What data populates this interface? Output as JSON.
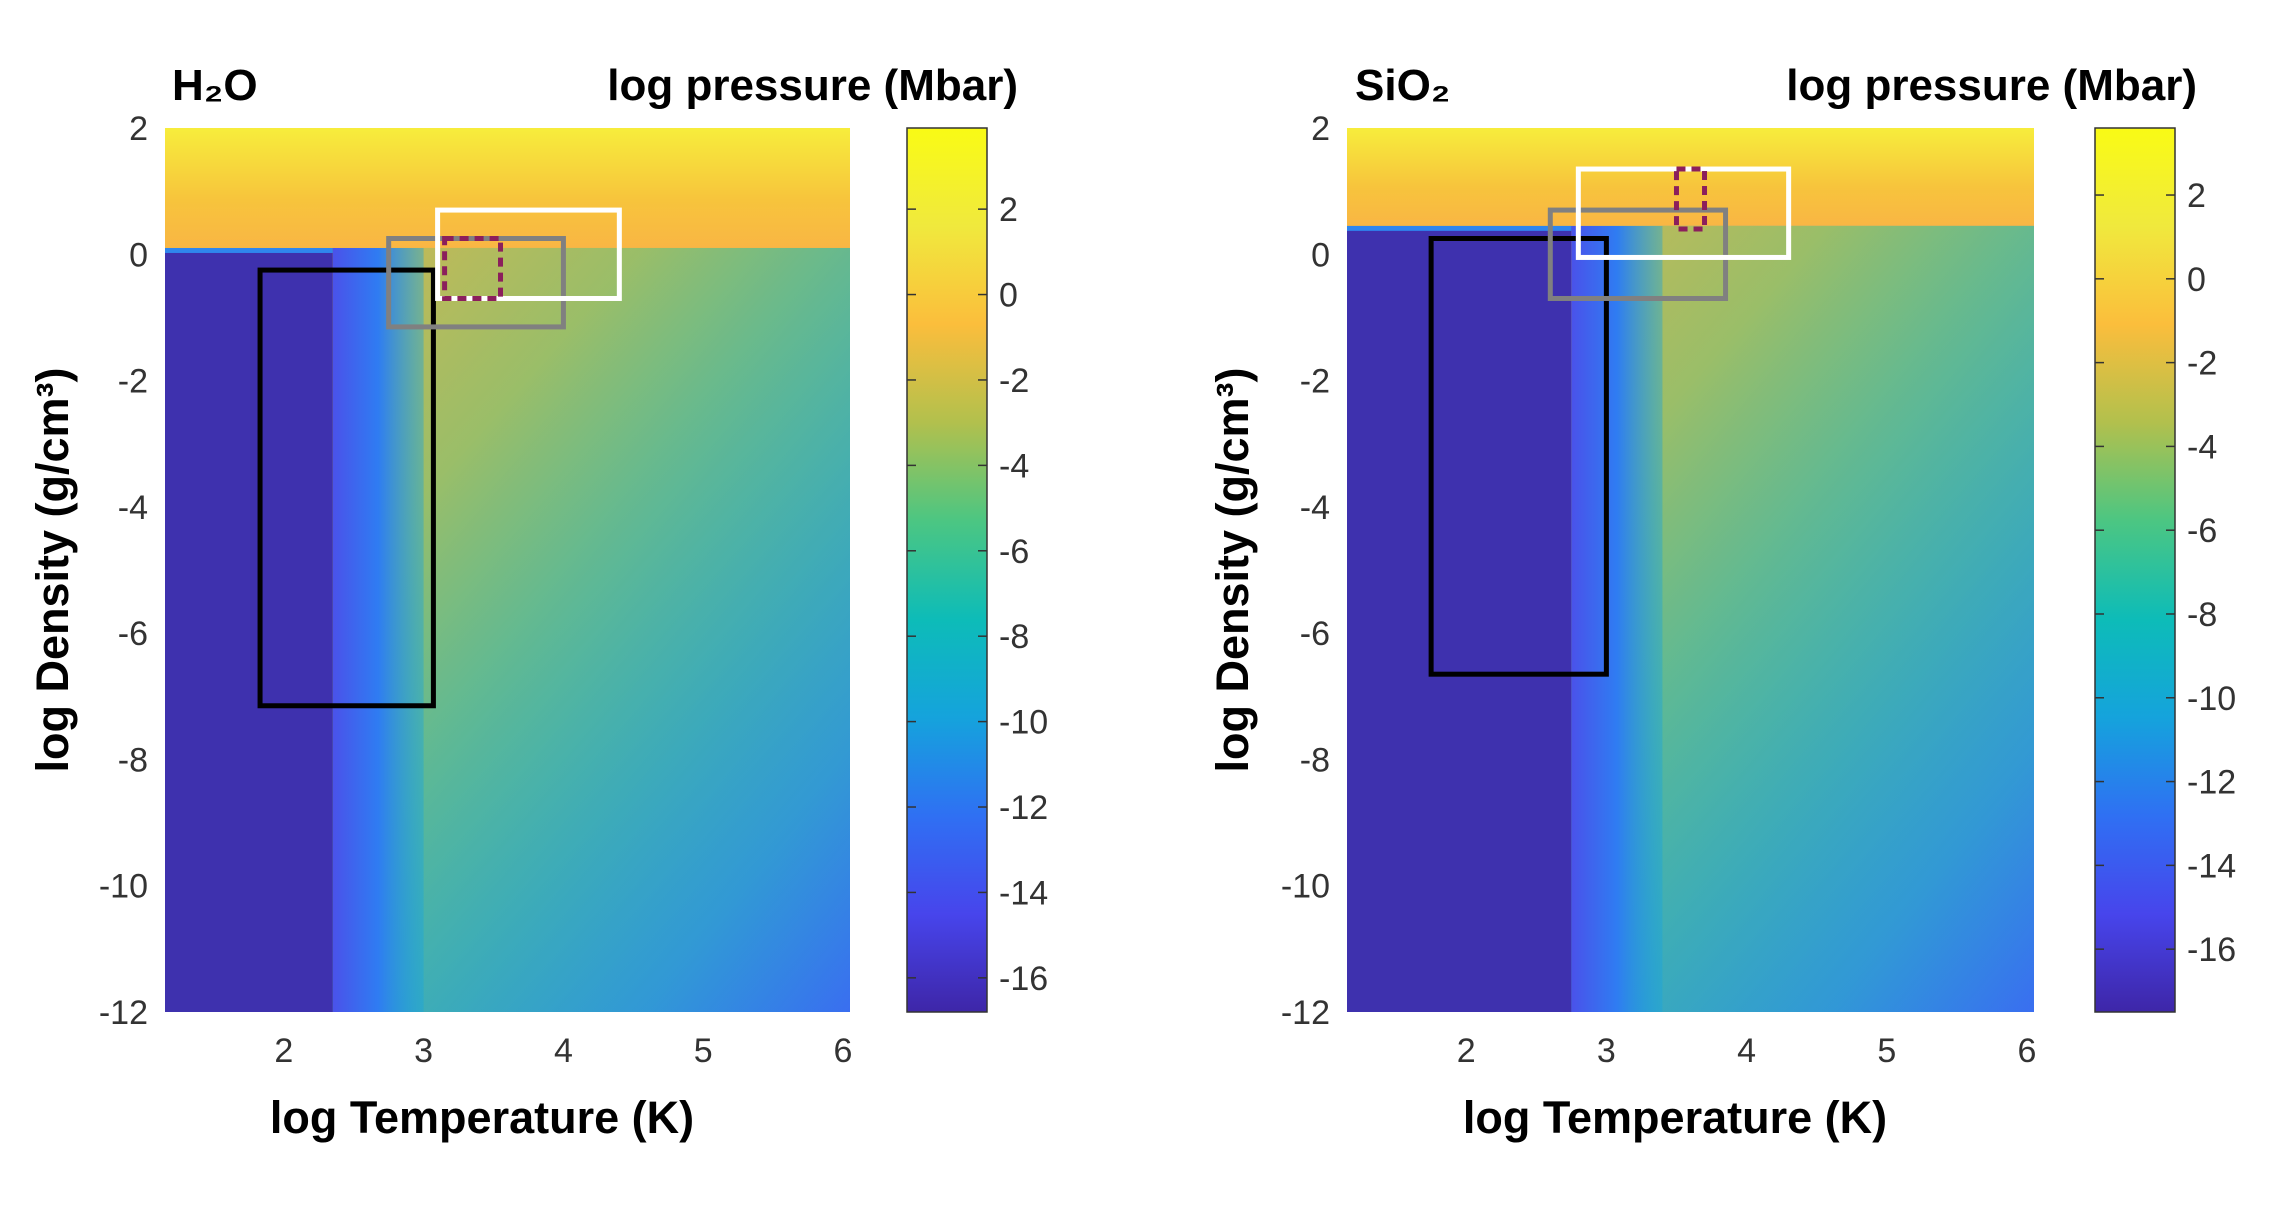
{
  "colors": {
    "viridis_stops": [
      "#3e26a8",
      "#4745ec",
      "#2f70f3",
      "#15a3dc",
      "#0dbcb8",
      "#4cc682",
      "#b2c04d",
      "#fbbe3c",
      "#f0e93d",
      "#f9fb15"
    ]
  },
  "chart_data": [
    {
      "type": "heatmap",
      "name": "h2o",
      "title": "H₂O",
      "colorbar_label": "log pressure (Mbar)",
      "xlabel": "log Temperature (K)",
      "ylabel": "log Density (g/cm³)",
      "xlim": [
        1.15,
        6.05
      ],
      "ylim": [
        -12,
        2
      ],
      "xticks": [
        2,
        3,
        4,
        5,
        6
      ],
      "yticks": [
        -12,
        -10,
        -8,
        -6,
        -4,
        -2,
        0,
        2
      ],
      "clim": [
        -16.8,
        3.9
      ],
      "cticks": [
        -16,
        -14,
        -12,
        -10,
        -8,
        -6,
        -4,
        -2,
        0,
        2
      ],
      "field": {
        "liquid_boundary_logrho": 0.1,
        "vapor_logT_edge": 2.35,
        "transition_logT_edge": 3.0
      },
      "boxes": [
        {
          "name": "black-box",
          "color": "#000000",
          "dashed": false,
          "logT": [
            1.83,
            3.07
          ],
          "logrho": [
            -7.15,
            -0.25
          ]
        },
        {
          "name": "gray-box",
          "color": "#808080",
          "dashed": false,
          "logT": [
            2.75,
            4.0
          ],
          "logrho": [
            -1.15,
            0.25
          ]
        },
        {
          "name": "white-box",
          "color": "#ffffff",
          "dashed": false,
          "logT": [
            3.1,
            4.4
          ],
          "logrho": [
            -0.7,
            0.7
          ]
        },
        {
          "name": "purple-dashed-box",
          "color": "#8b1f5c",
          "dashed": true,
          "logT": [
            3.15,
            3.55
          ],
          "logrho": [
            -0.7,
            0.25
          ]
        }
      ]
    },
    {
      "type": "heatmap",
      "name": "sio2",
      "title": "SiO₂",
      "colorbar_label": "log pressure (Mbar)",
      "xlabel": "log Temperature (K)",
      "ylabel": "log Density (g/cm³)",
      "xlim": [
        1.15,
        6.05
      ],
      "ylim": [
        -12,
        2
      ],
      "xticks": [
        2,
        3,
        4,
        5,
        6
      ],
      "yticks": [
        -12,
        -10,
        -8,
        -6,
        -4,
        -2,
        0,
        2
      ],
      "clim": [
        -17.5,
        3.6
      ],
      "cticks": [
        -16,
        -14,
        -12,
        -10,
        -8,
        -6,
        -4,
        -2,
        0,
        2
      ],
      "field": {
        "liquid_boundary_logrho": 0.45,
        "vapor_logT_edge": 2.75,
        "transition_logT_edge": 3.4
      },
      "boxes": [
        {
          "name": "black-box",
          "color": "#000000",
          "dashed": false,
          "logT": [
            1.75,
            3.0
          ],
          "logrho": [
            -6.65,
            0.25
          ]
        },
        {
          "name": "gray-box",
          "color": "#808080",
          "dashed": false,
          "logT": [
            2.6,
            3.85
          ],
          "logrho": [
            -0.7,
            0.7
          ]
        },
        {
          "name": "white-box",
          "color": "#ffffff",
          "dashed": false,
          "logT": [
            2.8,
            4.3
          ],
          "logrho": [
            -0.05,
            1.35
          ]
        },
        {
          "name": "purple-dashed-box",
          "color": "#8b1f5c",
          "dashed": true,
          "logT": [
            3.5,
            3.7
          ],
          "logrho": [
            0.4,
            1.35
          ]
        }
      ]
    }
  ]
}
